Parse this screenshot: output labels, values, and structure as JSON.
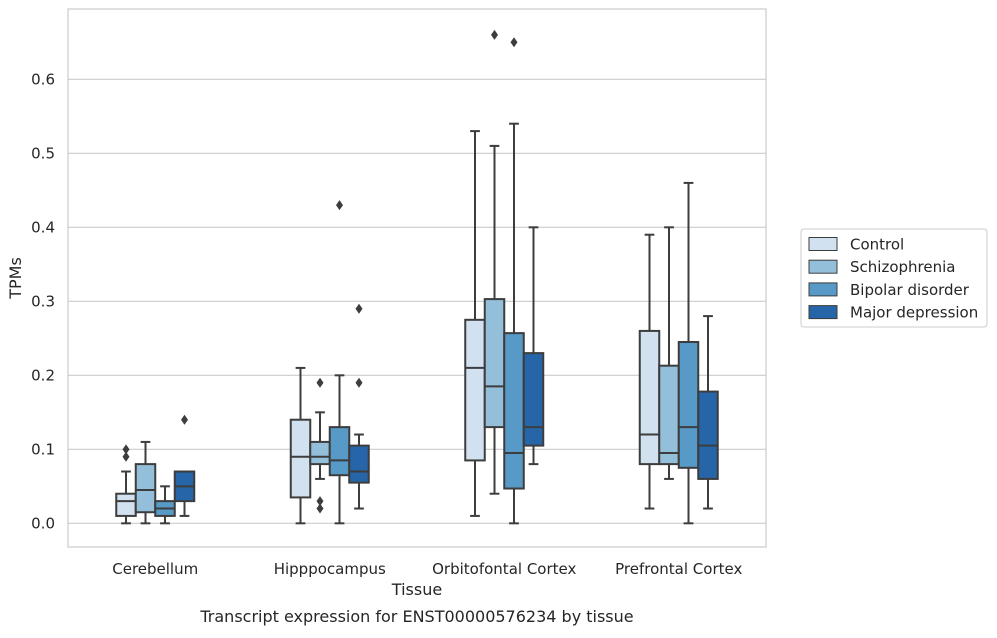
{
  "chart_data": {
    "type": "box",
    "title": "",
    "caption": "Transcript expression for ENST00000576234 by tissue",
    "xlabel": "Tissue",
    "ylabel": "TPMs",
    "ylim": [
      -0.032,
      0.695
    ],
    "yticks": [
      0.0,
      0.1,
      0.2,
      0.3,
      0.4,
      0.5,
      0.6
    ],
    "ytick_labels": [
      "0.0",
      "0.1",
      "0.2",
      "0.3",
      "0.4",
      "0.5",
      "0.6"
    ],
    "grid": true,
    "legend_position": "right",
    "categories": [
      "Cerebellum",
      "Hipppocampus",
      "Orbitofontal Cortex",
      "Prefrontal Cortex"
    ],
    "series": [
      {
        "name": "Control",
        "color": "#d1e1f0",
        "boxes": [
          {
            "whislo": 0.0,
            "q1": 0.01,
            "med": 0.03,
            "q3": 0.04,
            "whishi": 0.07,
            "fliers": [
              0.09,
              0.1
            ]
          },
          {
            "whislo": 0.0,
            "q1": 0.035,
            "med": 0.09,
            "q3": 0.14,
            "whishi": 0.21,
            "fliers": []
          },
          {
            "whislo": 0.01,
            "q1": 0.085,
            "med": 0.21,
            "q3": 0.275,
            "whishi": 0.53,
            "fliers": []
          },
          {
            "whislo": 0.02,
            "q1": 0.08,
            "med": 0.12,
            "q3": 0.26,
            "whishi": 0.39,
            "fliers": []
          }
        ]
      },
      {
        "name": "Schizophrenia",
        "color": "#94bfda",
        "boxes": [
          {
            "whislo": 0.0,
            "q1": 0.015,
            "med": 0.045,
            "q3": 0.08,
            "whishi": 0.11,
            "fliers": []
          },
          {
            "whislo": 0.06,
            "q1": 0.08,
            "med": 0.09,
            "q3": 0.11,
            "whishi": 0.15,
            "fliers": [
              0.02,
              0.03,
              0.19
            ]
          },
          {
            "whislo": 0.04,
            "q1": 0.13,
            "med": 0.185,
            "q3": 0.303,
            "whishi": 0.51,
            "fliers": [
              0.66
            ]
          },
          {
            "whislo": 0.06,
            "q1": 0.08,
            "med": 0.095,
            "q3": 0.213,
            "whishi": 0.4,
            "fliers": []
          }
        ]
      },
      {
        "name": "Bipolar disorder",
        "color": "#5799c7",
        "boxes": [
          {
            "whislo": 0.0,
            "q1": 0.01,
            "med": 0.02,
            "q3": 0.03,
            "whishi": 0.05,
            "fliers": []
          },
          {
            "whislo": 0.0,
            "q1": 0.065,
            "med": 0.085,
            "q3": 0.13,
            "whishi": 0.2,
            "fliers": [
              0.43
            ]
          },
          {
            "whislo": 0.0,
            "q1": 0.047,
            "med": 0.095,
            "q3": 0.257,
            "whishi": 0.54,
            "fliers": [
              0.65
            ]
          },
          {
            "whislo": 0.0,
            "q1": 0.075,
            "med": 0.13,
            "q3": 0.245,
            "whishi": 0.46,
            "fliers": []
          }
        ]
      },
      {
        "name": "Major depression",
        "color": "#2565a8",
        "boxes": [
          {
            "whislo": 0.01,
            "q1": 0.03,
            "med": 0.05,
            "q3": 0.07,
            "whishi": 0.07,
            "fliers": [
              0.14
            ]
          },
          {
            "whislo": 0.02,
            "q1": 0.055,
            "med": 0.07,
            "q3": 0.105,
            "whishi": 0.12,
            "fliers": [
              0.19,
              0.29
            ]
          },
          {
            "whislo": 0.08,
            "q1": 0.105,
            "med": 0.13,
            "q3": 0.23,
            "whishi": 0.4,
            "fliers": []
          },
          {
            "whislo": 0.02,
            "q1": 0.06,
            "med": 0.105,
            "q3": 0.178,
            "whishi": 0.28,
            "fliers": []
          }
        ]
      }
    ]
  }
}
